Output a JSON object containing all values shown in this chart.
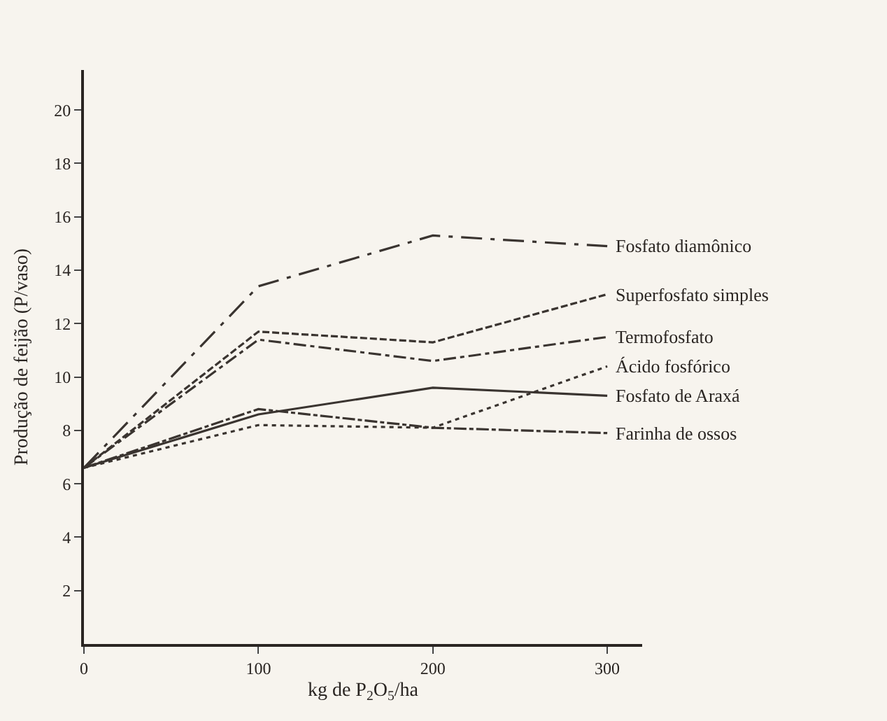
{
  "chart_data": {
    "type": "line",
    "xlabel": "kg de P$_{2}$O$_{5}$/ha",
    "ylabel": "Produção de feijão (P/vaso)",
    "x": [
      0,
      100,
      200,
      300
    ],
    "xlim": [
      0,
      320
    ],
    "xticks": [
      0,
      100,
      200,
      300
    ],
    "ylim": [
      0,
      21.5
    ],
    "yticks": [
      2,
      4,
      6,
      8,
      10,
      12,
      14,
      16,
      18,
      20
    ],
    "grid": false,
    "legend": false,
    "marker": "none",
    "series": [
      {
        "name": "Fosfato diamônico",
        "color": "#3a3430",
        "line_style": "longdashdot",
        "values": [
          6.6,
          13.4,
          15.3,
          14.9
        ]
      },
      {
        "name": "Superfosfato simples",
        "color": "#3a3430",
        "line_style": "dashed",
        "values": [
          6.6,
          11.7,
          11.3,
          13.1
        ]
      },
      {
        "name": "Termofosfato",
        "color": "#3a3430",
        "line_style": "dashdot",
        "values": [
          6.6,
          11.4,
          10.6,
          11.5
        ]
      },
      {
        "name": "Ácido fosfórico",
        "color": "#3a3430",
        "line_style": "dotted",
        "values": [
          6.6,
          8.2,
          8.1,
          10.4
        ]
      },
      {
        "name": "Fosfato de Araxá",
        "color": "#3a3430",
        "line_style": "solid",
        "values": [
          6.6,
          8.6,
          9.6,
          9.3
        ]
      },
      {
        "name": "Farinha de ossos",
        "color": "#3a3430",
        "line_style": "longdash",
        "values": [
          6.6,
          8.8,
          8.1,
          7.9
        ]
      }
    ]
  }
}
